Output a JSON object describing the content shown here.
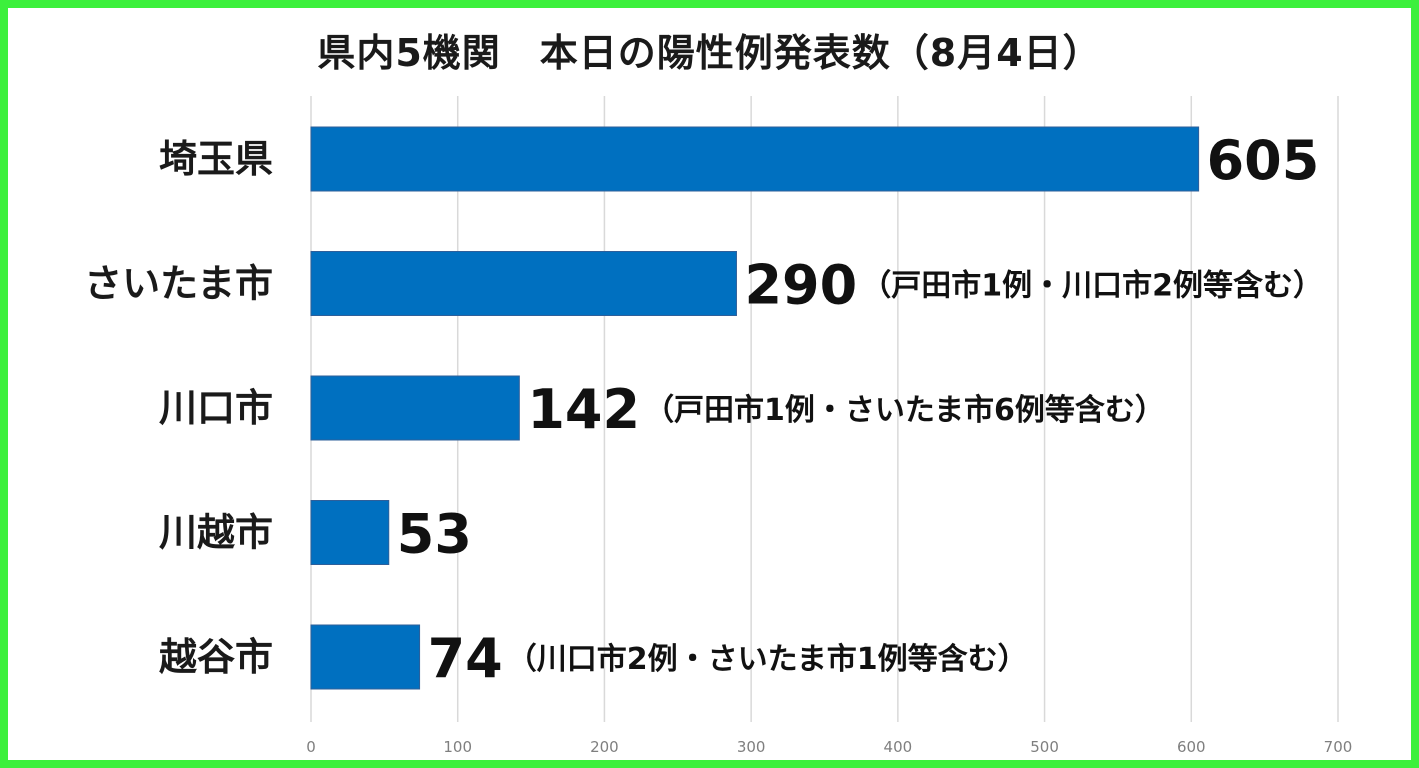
{
  "chart_data": {
    "type": "bar",
    "orientation": "horizontal",
    "title": "県内5機関　本日の陽性例発表数（8月4日）",
    "categories": [
      "埼玉県",
      "さいたま市",
      "川口市",
      "川越市",
      "越谷市"
    ],
    "values": [
      605,
      290,
      142,
      53,
      74
    ],
    "data_labels": [
      "605",
      "290",
      "142",
      "53",
      "74"
    ],
    "annotations": [
      "",
      "（戸田市1例・川口市2例等含む）",
      "（戸田市1例・さいたま市6例等含む）",
      "",
      "（川口市2例・さいたま市1例等含む）"
    ],
    "xlim": [
      0,
      700
    ],
    "xticks": [
      "0",
      "100",
      "200",
      "300",
      "400",
      "500",
      "600",
      "700"
    ],
    "grid": true,
    "legend": "none",
    "bar_color": "#0070c0",
    "border_color": "#3cf03c"
  }
}
